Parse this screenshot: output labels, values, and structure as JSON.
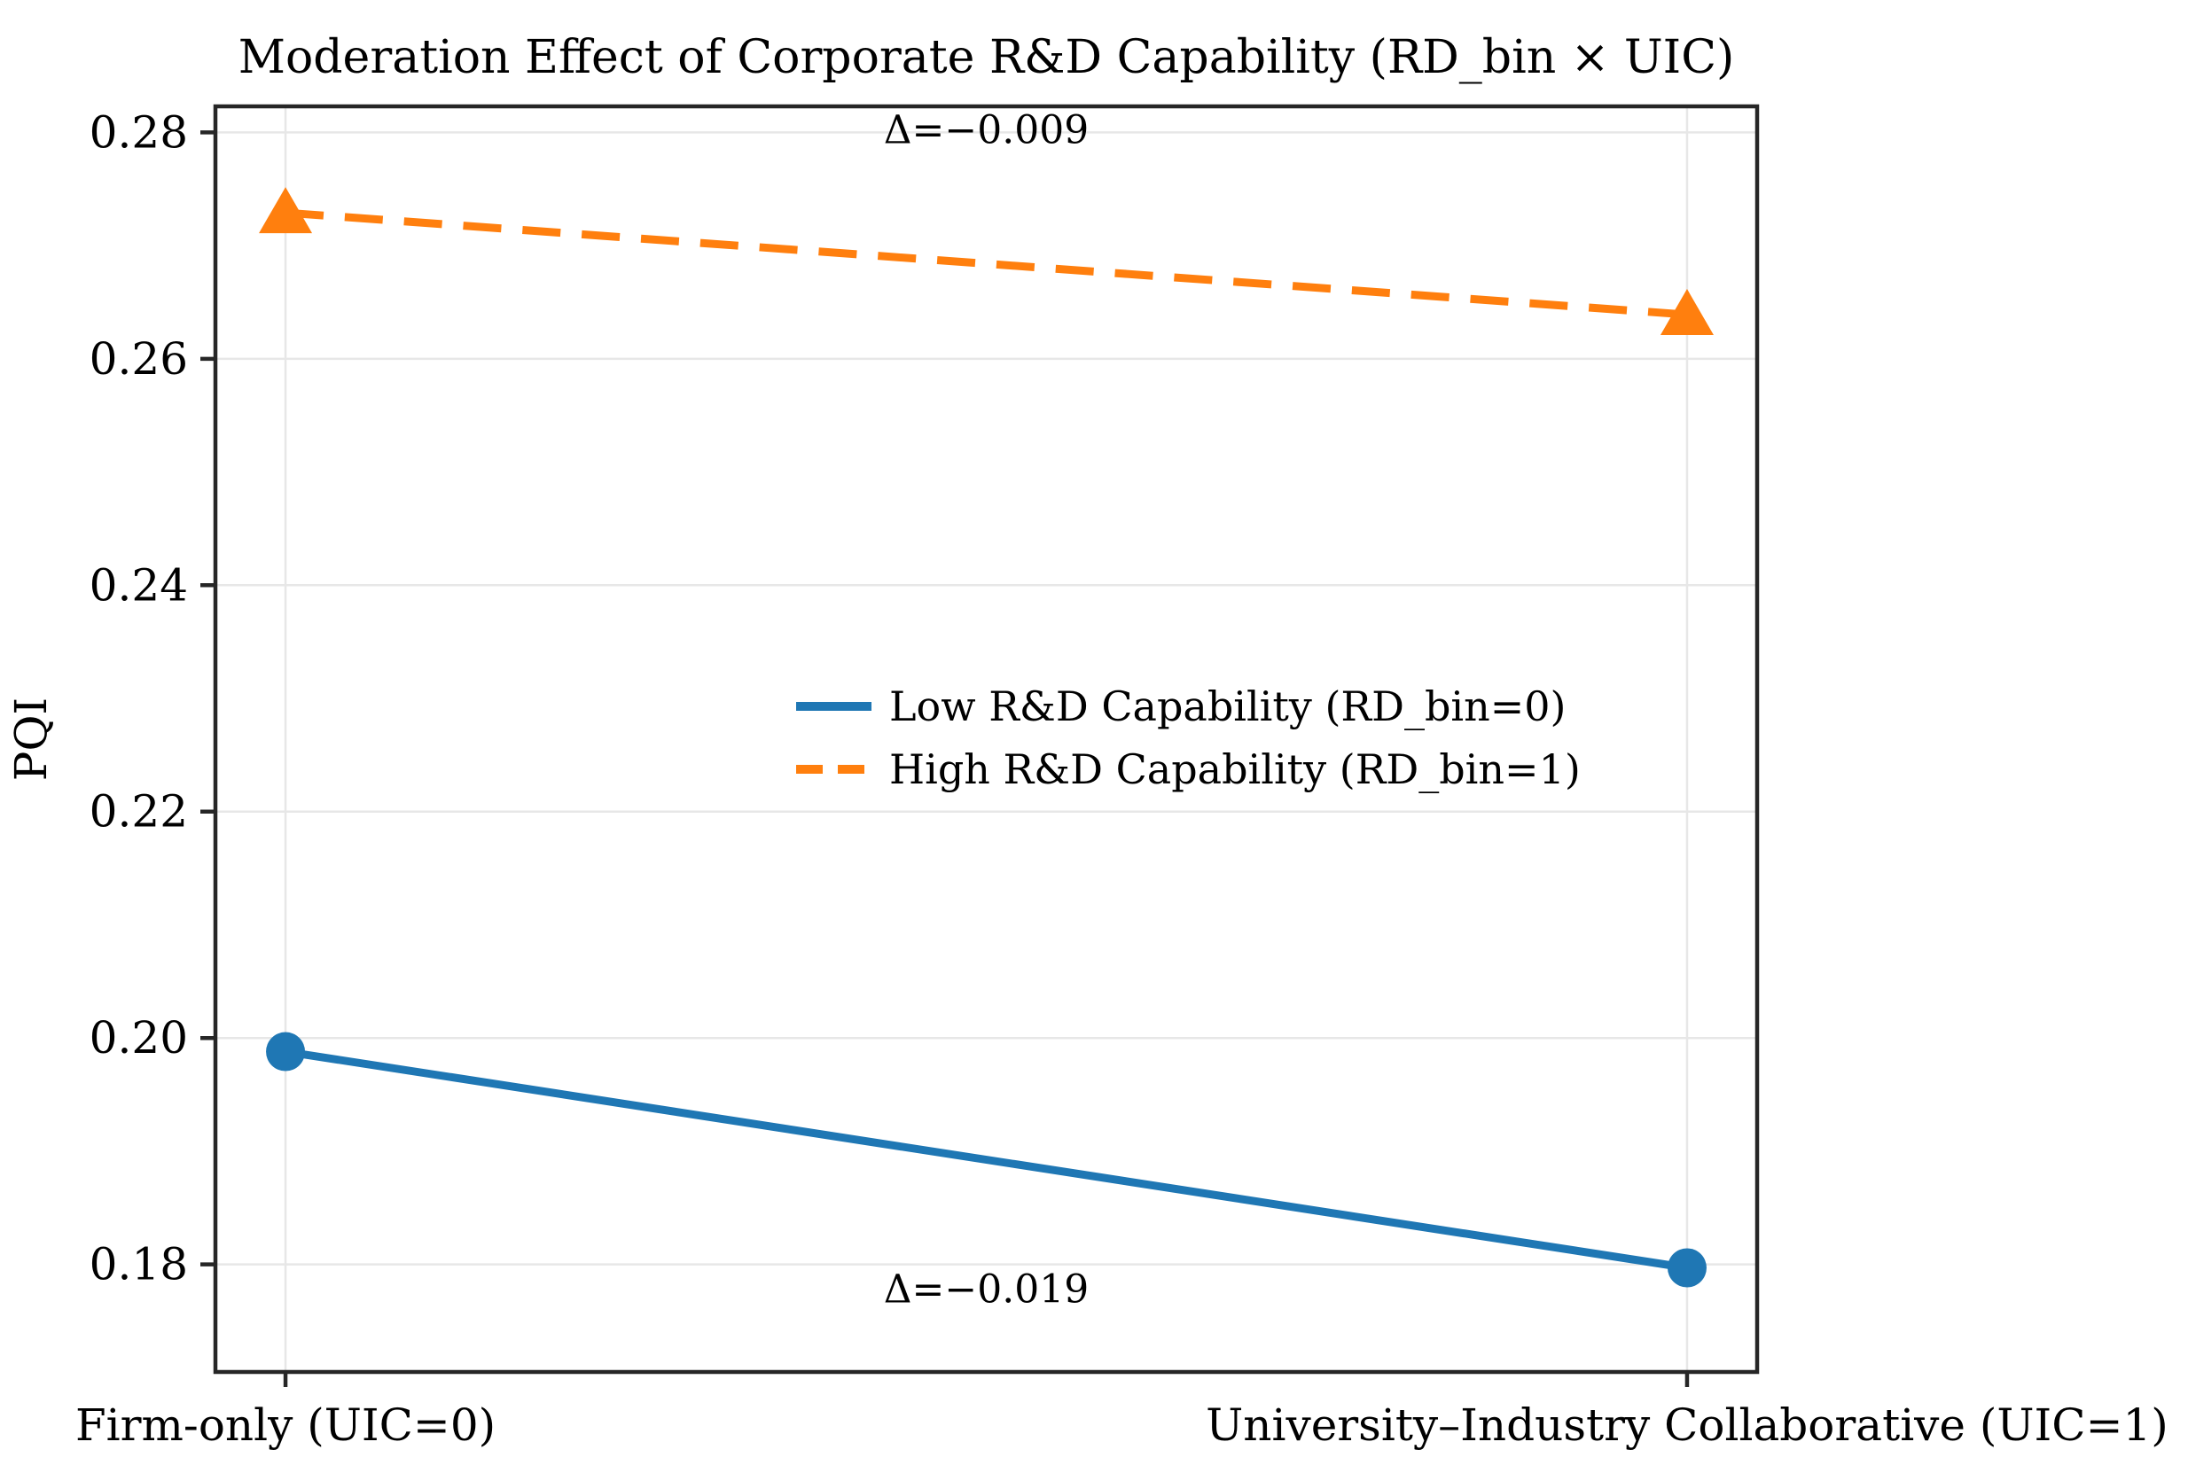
{
  "chart_data": {
    "type": "line",
    "title": "Moderation Effect of Corporate R&D Capability (RD_bin × UIC)",
    "xlabel": "",
    "ylabel": "PQI",
    "categories": [
      "Firm-only (UIC=0)",
      "University–Industry Collaborative (UIC=1)"
    ],
    "x": [
      0,
      1
    ],
    "series": [
      {
        "name": "Low R&D Capability (RD_bin=0)",
        "values": [
          0.1988,
          0.1797
        ],
        "color": "#1f77b4",
        "line_style": "solid",
        "marker": "circle"
      },
      {
        "name": "High R&D Capability (RD_bin=1)",
        "values": [
          0.2729,
          0.2639
        ],
        "color": "#ff7f0e",
        "line_style": "dashed",
        "marker": "triangle"
      }
    ],
    "annotations": [
      {
        "text": "Δ=−0.009",
        "x": 0.5,
        "y": 0.2802,
        "color": "#ff7f0e"
      },
      {
        "text": "Δ=−0.019",
        "x": 0.5,
        "y": 0.1778,
        "color": "#1f77b4"
      }
    ],
    "yticks": [
      0.18,
      0.2,
      0.22,
      0.24,
      0.26,
      0.28
    ],
    "ytick_labels": [
      "0.18",
      "0.20",
      "0.22",
      "0.24",
      "0.26",
      "0.28"
    ],
    "ylim": [
      0.1705,
      0.2823
    ],
    "xlim": [
      -0.05,
      1.05
    ],
    "grid": true,
    "legend_position": "center-inside",
    "colors": {
      "spine": "#262626",
      "gridline": "#e7e7e7",
      "background": "#ffffff",
      "text": "#000000"
    }
  }
}
